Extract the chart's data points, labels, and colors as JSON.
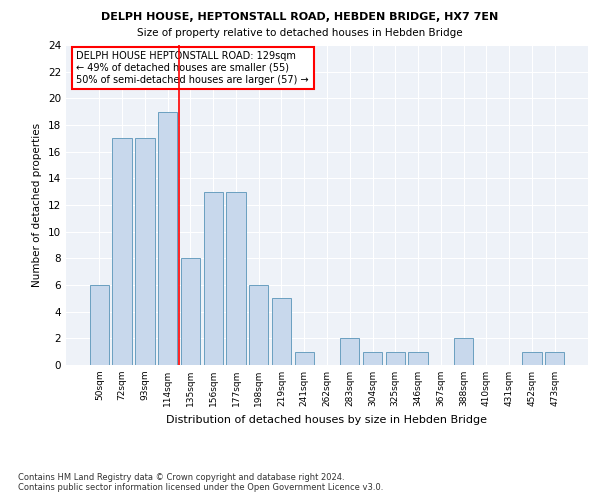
{
  "title1": "DELPH HOUSE, HEPTONSTALL ROAD, HEBDEN BRIDGE, HX7 7EN",
  "title2": "Size of property relative to detached houses in Hebden Bridge",
  "xlabel": "Distribution of detached houses by size in Hebden Bridge",
  "ylabel": "Number of detached properties",
  "categories": [
    "50sqm",
    "72sqm",
    "93sqm",
    "114sqm",
    "135sqm",
    "156sqm",
    "177sqm",
    "198sqm",
    "219sqm",
    "241sqm",
    "262sqm",
    "283sqm",
    "304sqm",
    "325sqm",
    "346sqm",
    "367sqm",
    "388sqm",
    "410sqm",
    "431sqm",
    "452sqm",
    "473sqm"
  ],
  "values": [
    6,
    17,
    17,
    19,
    8,
    13,
    13,
    6,
    5,
    1,
    0,
    2,
    1,
    1,
    1,
    0,
    2,
    0,
    0,
    1,
    1
  ],
  "bar_color": "#c8d8ec",
  "bar_edgecolor": "#6a9fc0",
  "vline_color": "red",
  "annotation_text": "DELPH HOUSE HEPTONSTALL ROAD: 129sqm\n← 49% of detached houses are smaller (55)\n50% of semi-detached houses are larger (57) →",
  "annotation_box_color": "white",
  "annotation_box_edgecolor": "red",
  "ylim": [
    0,
    24
  ],
  "yticks": [
    0,
    2,
    4,
    6,
    8,
    10,
    12,
    14,
    16,
    18,
    20,
    22,
    24
  ],
  "footer": "Contains HM Land Registry data © Crown copyright and database right 2024.\nContains public sector information licensed under the Open Government Licence v3.0.",
  "plot_bg_color": "#eef2f8"
}
